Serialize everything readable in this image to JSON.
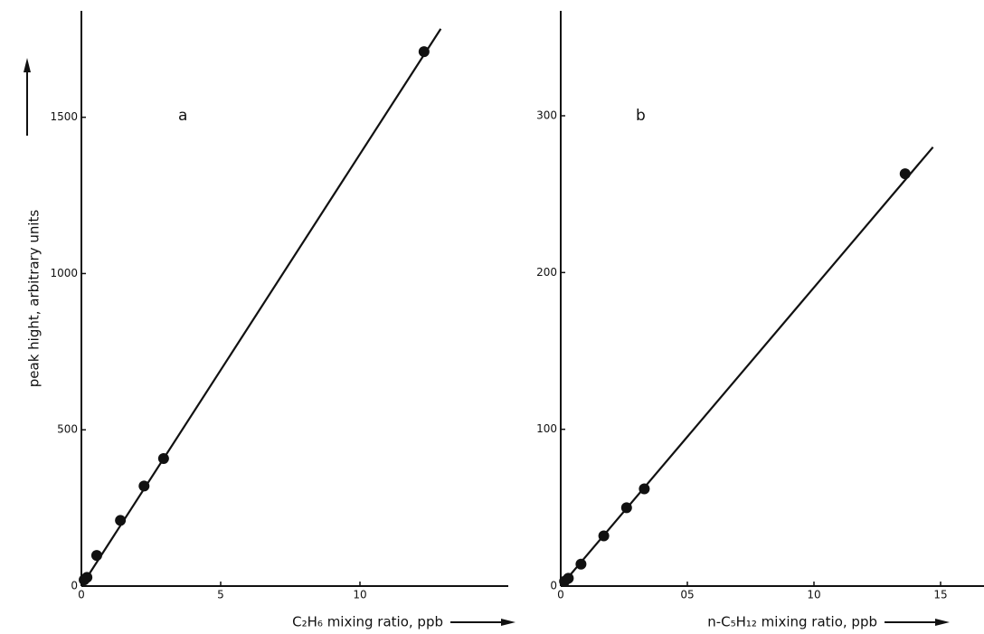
{
  "chart_data": [
    {
      "type": "scatter",
      "title": "a",
      "y_label": "peak hight, arbitrary units",
      "x_label": "C₂H₆ mixing ratio, ppb",
      "x": [
        0.1,
        0.2,
        0.55,
        1.4,
        2.25,
        2.95,
        12.3
      ],
      "values": [
        20,
        28,
        98,
        210,
        320,
        408,
        1710
      ],
      "fit_line": {
        "x": [
          0,
          12.9
        ],
        "y": [
          0,
          1783
        ]
      },
      "color": "#111111",
      "xlim": [
        0,
        15
      ],
      "xticks": [
        0,
        5,
        10
      ],
      "ylim": [
        0,
        1800
      ],
      "yticks": [
        0,
        500,
        1000,
        1500
      ]
    },
    {
      "type": "scatter",
      "title": "b",
      "x_label": "n-C₅H₁₂ mixing ratio, ppb",
      "x": [
        0.015,
        0.03,
        0.08,
        0.17,
        0.26,
        0.33,
        1.36
      ],
      "values": [
        3,
        5,
        14,
        32,
        50,
        62,
        263
      ],
      "fit_line": {
        "x": [
          0,
          1.47
        ],
        "y": [
          0,
          280
        ]
      },
      "color": "#111111",
      "xlim": [
        0,
        1.65
      ],
      "xticks": [
        0,
        {
          "value": 0.5,
          "label": "05"
        },
        {
          "value": 1.0,
          "label": "10"
        },
        {
          "value": 1.5,
          "label": "15"
        }
      ],
      "ylim": [
        0,
        360
      ],
      "yticks": [
        0,
        100,
        200,
        300
      ]
    }
  ]
}
